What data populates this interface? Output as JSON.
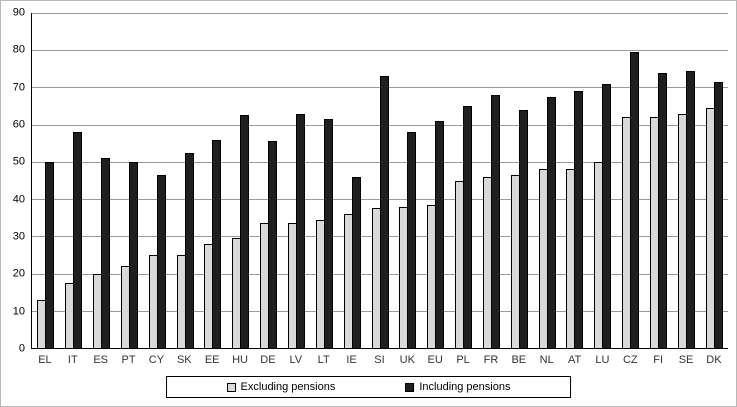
{
  "chart_data": {
    "type": "bar",
    "title": "",
    "xlabel": "",
    "ylabel": "",
    "categories": [
      "EL",
      "IT",
      "ES",
      "PT",
      "CY",
      "SK",
      "EE",
      "HU",
      "DE",
      "LV",
      "LT",
      "IE",
      "SI",
      "UK",
      "EU",
      "PL",
      "FR",
      "BE",
      "NL",
      "AT",
      "LU",
      "CZ",
      "FI",
      "SE",
      "DK"
    ],
    "series": [
      {
        "name": "Excluding pensions",
        "color": "#d9d9d9",
        "values": [
          13,
          17.5,
          20,
          22,
          25,
          25,
          28,
          29.5,
          33.5,
          33.5,
          34.5,
          36,
          37.5,
          38,
          38.5,
          45,
          46,
          46.5,
          48,
          48,
          50,
          62,
          62,
          63,
          64.5
        ]
      },
      {
        "name": "Including pensions",
        "color": "#1f1f1f",
        "values": [
          50,
          58,
          51,
          50,
          46.5,
          52.5,
          56,
          62.5,
          55.5,
          63,
          61.5,
          46,
          73,
          58,
          61,
          65,
          68,
          64,
          67.5,
          69,
          71,
          79.5,
          74,
          74.5,
          71.5
        ]
      }
    ],
    "ylim": [
      0,
      90
    ],
    "ytick_step": 10,
    "grid": true,
    "legend_position": "bottom"
  }
}
